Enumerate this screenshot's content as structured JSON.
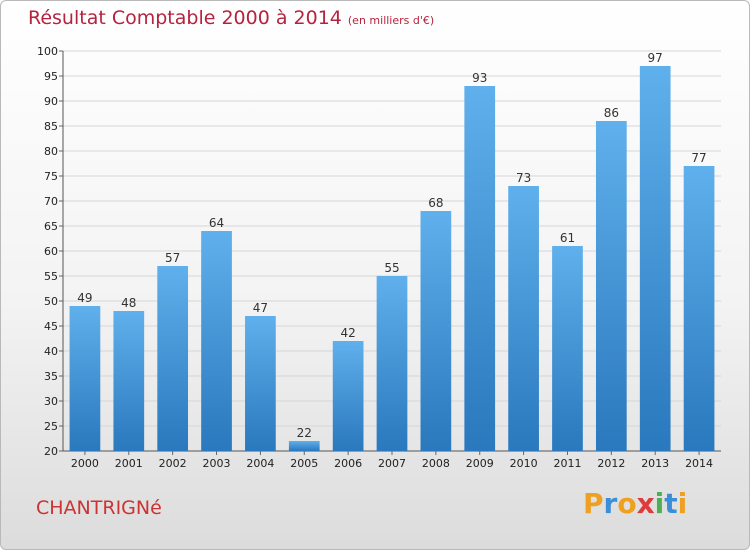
{
  "title": "Résultat Comptable 2000 à 2014",
  "unit_label": "(en milliers d'€)",
  "commune": "CHANTRIGNé",
  "logo": {
    "text": "Proxiti",
    "letters": [
      "P",
      "r",
      "o",
      "x",
      "i",
      "t",
      "i"
    ],
    "colors": [
      "#f0a020",
      "#3a8fd8",
      "#f0a020",
      "#e03a3a",
      "#4caf50",
      "#3a8fd8",
      "#f0a020"
    ]
  },
  "colors": {
    "bar_top": "#5fb0ec",
    "bar_bottom": "#2a78bd",
    "title": "#b5233e",
    "commune": "#cc3333"
  },
  "chart_data": {
    "type": "bar",
    "title": "Résultat Comptable 2000 à 2014",
    "subtitle": "(en milliers d'€)",
    "categories": [
      "2000",
      "2001",
      "2002",
      "2003",
      "2004",
      "2005",
      "2006",
      "2007",
      "2008",
      "2009",
      "2010",
      "2011",
      "2012",
      "2013",
      "2014"
    ],
    "values": [
      49,
      48,
      57,
      64,
      47,
      22,
      42,
      55,
      68,
      93,
      73,
      61,
      86,
      97,
      77
    ],
    "ylim": [
      20,
      100
    ],
    "yticks": [
      20,
      25,
      30,
      35,
      40,
      45,
      50,
      55,
      60,
      65,
      70,
      75,
      80,
      85,
      90,
      95,
      100
    ],
    "grid": true,
    "xlabel": "",
    "ylabel": ""
  }
}
